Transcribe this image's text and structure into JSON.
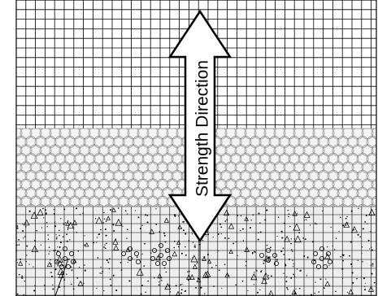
{
  "diagram": {
    "arrow_label": "Strength Direction",
    "layers": [
      {
        "id": "geogrid",
        "pattern": "square-grid",
        "fill": "#ffffff"
      },
      {
        "id": "aggregate",
        "pattern": "circles",
        "fill": "#f4f4f4"
      },
      {
        "id": "concrete",
        "pattern": "stipple-and-grid",
        "fill": "#eeeeee"
      }
    ],
    "colors": {
      "line": "#000000",
      "aggregate_line": "#9a9a9a",
      "arrow_fill": "#ffffff"
    }
  }
}
